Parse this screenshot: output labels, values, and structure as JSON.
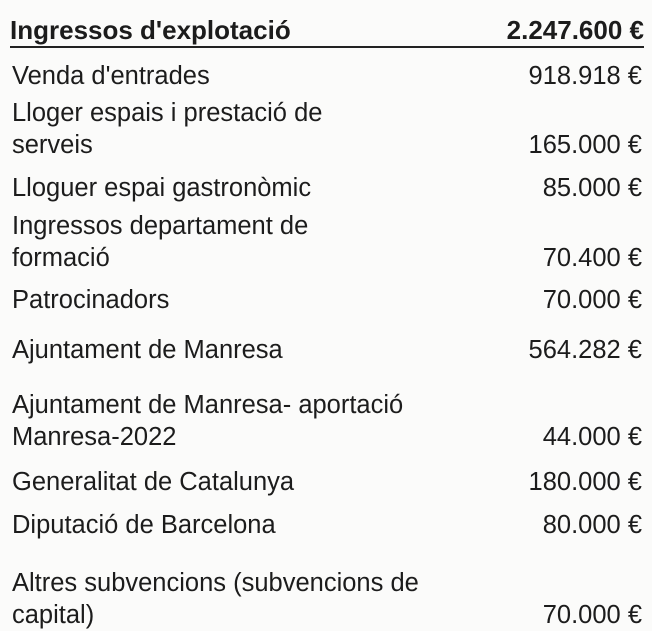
{
  "header": {
    "title": "Ingressos d'explotació",
    "total": "2.247.600 €"
  },
  "table": {
    "rows": [
      [
        "Venda d'entrades",
        "918.918 €"
      ],
      [
        "Lloger espais i prestació de serveis",
        "165.000 €"
      ],
      [
        "Lloguer espai gastronòmic",
        "85.000 €"
      ],
      [
        "Ingressos departament de formació",
        "70.400 €"
      ],
      [
        "Patrocinadors",
        "70.000 €"
      ],
      [
        "Ajuntament de Manresa",
        "564.282 €"
      ],
      [
        "Ajuntament de Manresa- aportació Manresa-2022",
        "44.000 €"
      ],
      [
        "Generalitat de Catalunya",
        "180.000 €"
      ],
      [
        "Diputació de Barcelona",
        "80.000 €"
      ],
      [
        "Altres subvencions (subvencions de capital)",
        "70.000 €"
      ]
    ]
  }
}
